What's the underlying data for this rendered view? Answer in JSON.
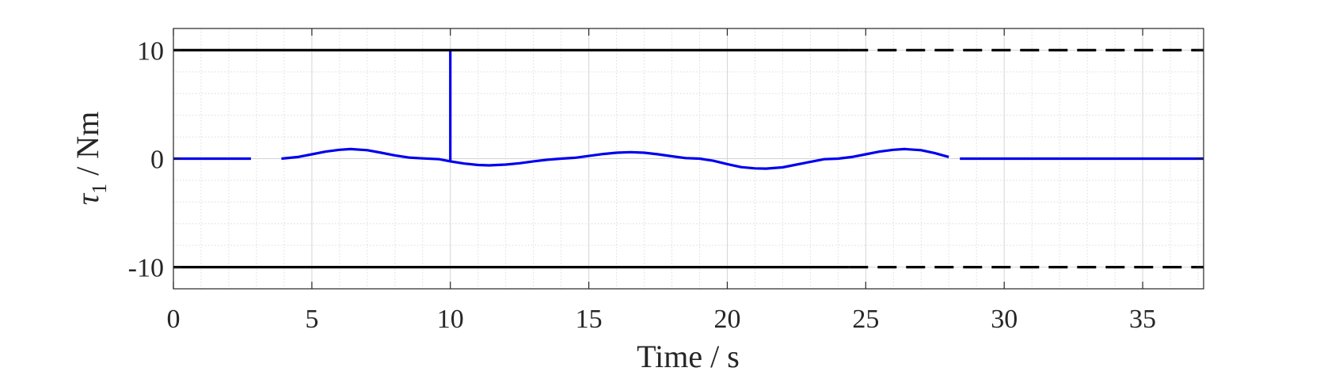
{
  "chart_data": {
    "type": "line",
    "xlabel": "Time / s",
    "ylabel": "τ",
    "ylabel_subscript": "1",
    "ylabel_unit": " / Nm",
    "xlim": [
      0,
      37.2
    ],
    "ylim": [
      -12,
      12
    ],
    "xticks": [
      0,
      5,
      10,
      15,
      20,
      25,
      30,
      35
    ],
    "yticks": [
      -10,
      0,
      10
    ],
    "xtick_labels": [
      "0",
      "5",
      "10",
      "15",
      "20",
      "25",
      "30",
      "35"
    ],
    "ytick_labels": [
      "-10",
      "0",
      "10"
    ],
    "grid": true,
    "minor_grid": true,
    "series": [
      {
        "role": "signal",
        "color": "#0000ee",
        "segments": [
          {
            "x": [
              0,
              2.8
            ],
            "y": [
              0,
              0
            ]
          },
          {
            "x": [
              3.9,
              4.5,
              5.0,
              5.5,
              6.0,
              6.4,
              7.0,
              7.5,
              8.0,
              8.5,
              9.0,
              9.6,
              10.0
            ],
            "y": [
              0,
              0.15,
              0.4,
              0.65,
              0.82,
              0.88,
              0.78,
              0.55,
              0.3,
              0.1,
              0.02,
              -0.05,
              -0.25
            ]
          },
          {
            "x": [
              10.0,
              10.0
            ],
            "y": [
              -0.25,
              10
            ]
          },
          {
            "x": [
              10.0,
              10.5,
              11.0,
              11.4,
              12.0,
              12.5,
              13.0,
              13.5,
              14.0,
              14.5,
              15.0,
              15.5,
              16.0,
              16.5,
              17.0,
              17.5,
              18.0,
              18.5,
              19.0,
              19.5,
              20.0,
              20.5,
              21.0,
              21.4,
              22.0,
              22.5,
              23.0,
              23.5,
              24.0,
              24.5,
              25.0,
              25.5,
              26.0,
              26.4,
              27.0,
              27.5,
              28.0
            ],
            "y": [
              -0.25,
              -0.45,
              -0.58,
              -0.62,
              -0.55,
              -0.42,
              -0.25,
              -0.1,
              0,
              0.08,
              0.25,
              0.42,
              0.55,
              0.6,
              0.55,
              0.4,
              0.22,
              0.05,
              0,
              -0.2,
              -0.5,
              -0.78,
              -0.9,
              -0.92,
              -0.8,
              -0.55,
              -0.3,
              -0.05,
              0,
              0.15,
              0.4,
              0.65,
              0.82,
              0.88,
              0.78,
              0.5,
              0.15
            ]
          },
          {
            "x": [
              28.4,
              37.2
            ],
            "y": [
              0,
              0
            ]
          }
        ]
      },
      {
        "role": "upper-limit",
        "color": "#000000",
        "solid": {
          "x": [
            0,
            24.4
          ],
          "y": [
            10,
            10
          ]
        },
        "dashed": {
          "x": [
            24.4,
            37.2
          ],
          "y": [
            10,
            10
          ]
        }
      },
      {
        "role": "lower-limit",
        "color": "#000000",
        "solid": {
          "x": [
            0,
            24.4
          ],
          "y": [
            -10,
            -10
          ]
        },
        "dashed": {
          "x": [
            24.4,
            37.2
          ],
          "y": [
            -10,
            -10
          ]
        }
      }
    ]
  }
}
